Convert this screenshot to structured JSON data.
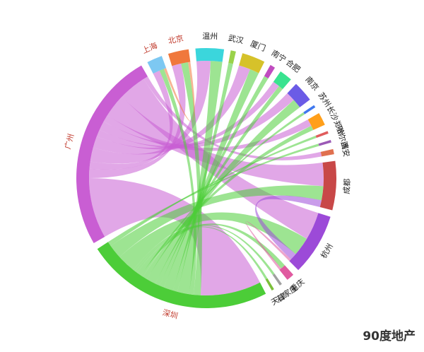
{
  "chart_data": {
    "type": "chord",
    "nodes": [
      {
        "name": "上海",
        "color": "#7dc8f2",
        "label_color": "#c0392b"
      },
      {
        "name": "北京",
        "color": "#f0783c",
        "label_color": "#c0392b"
      },
      {
        "name": "温州",
        "color": "#3bd6dc",
        "label_color": "#222222"
      },
      {
        "name": "武汉",
        "color": "#9ad24a",
        "label_color": "#222222"
      },
      {
        "name": "厦门",
        "color": "#d6c22a",
        "label_color": "#222222"
      },
      {
        "name": "南宁",
        "color": "#c04cc0",
        "label_color": "#222222"
      },
      {
        "name": "合肥",
        "color": "#39e38f",
        "label_color": "#222222"
      },
      {
        "name": "南京",
        "color": "#6b5be6",
        "label_color": "#222222"
      },
      {
        "name": "苏州",
        "color": "#3f78ef",
        "label_color": "#222222"
      },
      {
        "name": "长沙",
        "color": "#ff9f1a",
        "label_color": "#222222"
      },
      {
        "name": "郑州",
        "color": "#e05c5c",
        "label_color": "#222222"
      },
      {
        "name": "哈尔滨",
        "color": "#9b59b6",
        "label_color": "#222222"
      },
      {
        "name": "西安",
        "color": "#e0704f",
        "label_color": "#222222"
      },
      {
        "name": "成都",
        "color": "#c84848",
        "label_color": "#222222"
      },
      {
        "name": "杭州",
        "color": "#9c4ad8",
        "label_color": "#222222"
      },
      {
        "name": "重庆",
        "color": "#e05aa0",
        "label_color": "#222222"
      },
      {
        "name": "石家庄",
        "color": "#a0a0a0",
        "label_color": "#222222"
      },
      {
        "name": "天津",
        "color": "#7cbf3a",
        "label_color": "#222222"
      },
      {
        "name": "深圳",
        "color": "#4ccd38",
        "label_color": "#c0392b"
      },
      {
        "name": "广州",
        "color": "#c95ed3",
        "label_color": "#c0392b"
      }
    ],
    "links": [
      {
        "source": "广州",
        "target": "深圳",
        "value": 26
      },
      {
        "source": "广州",
        "target": "北京",
        "value": 4
      },
      {
        "source": "广州",
        "target": "上海",
        "value": 3
      },
      {
        "source": "广州",
        "target": "温州",
        "value": 6
      },
      {
        "source": "广州",
        "target": "厦门",
        "value": 5
      },
      {
        "source": "广州",
        "target": "合肥",
        "value": 3
      },
      {
        "source": "广州",
        "target": "南京",
        "value": 4
      },
      {
        "source": "广州",
        "target": "长沙",
        "value": 3
      },
      {
        "source": "广州",
        "target": "成都",
        "value": 10
      },
      {
        "source": "广州",
        "target": "杭州",
        "value": 12
      },
      {
        "source": "广州",
        "target": "西安",
        "value": 2
      },
      {
        "source": "深圳",
        "target": "北京",
        "value": 3
      },
      {
        "source": "深圳",
        "target": "上海",
        "value": 2
      },
      {
        "source": "深圳",
        "target": "温州",
        "value": 5
      },
      {
        "source": "深圳",
        "target": "武汉",
        "value": 2
      },
      {
        "source": "深圳",
        "target": "厦门",
        "value": 4
      },
      {
        "source": "深圳",
        "target": "南宁",
        "value": 2
      },
      {
        "source": "深圳",
        "target": "合肥",
        "value": 2
      },
      {
        "source": "深圳",
        "target": "南京",
        "value": 4
      },
      {
        "source": "深圳",
        "target": "长沙",
        "value": 2
      },
      {
        "source": "深圳",
        "target": "苏州",
        "value": 1
      },
      {
        "source": "深圳",
        "target": "重庆",
        "value": 2
      },
      {
        "source": "深圳",
        "target": "天津",
        "value": 1
      },
      {
        "source": "深圳",
        "target": "石家庄",
        "value": 1
      },
      {
        "source": "深圳",
        "target": "杭州",
        "value": 8
      },
      {
        "source": "深圳",
        "target": "成都",
        "value": 6
      },
      {
        "source": "深圳",
        "target": "郑州",
        "value": 1
      },
      {
        "source": "深圳",
        "target": "哈尔滨",
        "value": 1
      },
      {
        "source": "杭州",
        "target": "成都",
        "value": 3
      },
      {
        "source": "北京",
        "target": "上海",
        "value": 1
      },
      {
        "source": "重庆",
        "target": "杭州",
        "value": 1
      }
    ]
  },
  "watermark": "90度地产"
}
